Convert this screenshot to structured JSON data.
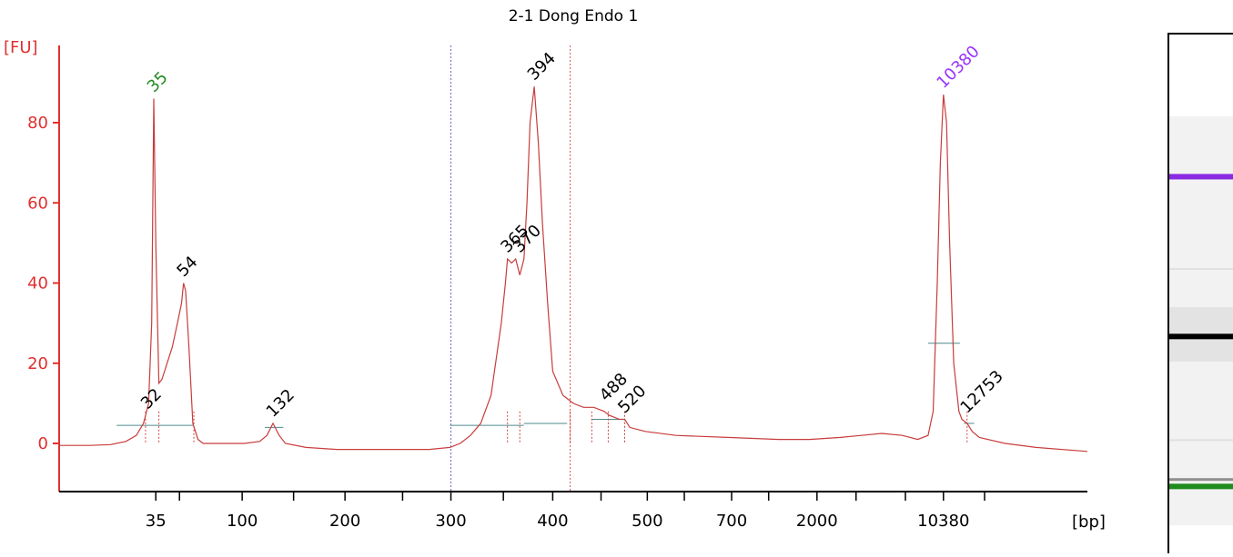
{
  "chart_data": {
    "type": "line",
    "title": "2-1 Dong Endo 1",
    "ylabel": "[FU]",
    "xlabel": "[bp]",
    "ylim": [
      -12,
      98
    ],
    "yticks": [
      0,
      20,
      40,
      60,
      80
    ],
    "xticks": [
      {
        "label": "35",
        "pos": 0.094
      },
      {
        "label": "",
        "pos": 0.117
      },
      {
        "label": "100",
        "pos": 0.178
      },
      {
        "label": "",
        "pos": 0.228
      },
      {
        "label": "200",
        "pos": 0.278
      },
      {
        "label": "",
        "pos": 0.334
      },
      {
        "label": "300",
        "pos": 0.381
      },
      {
        "label": "",
        "pos": 0.432
      },
      {
        "label": "400",
        "pos": 0.48
      },
      {
        "label": "",
        "pos": 0.527
      },
      {
        "label": "500",
        "pos": 0.572
      },
      {
        "label": "",
        "pos": 0.608
      },
      {
        "label": "700",
        "pos": 0.654
      },
      {
        "label": "",
        "pos": 0.69
      },
      {
        "label": "2000",
        "pos": 0.737
      },
      {
        "label": "",
        "pos": 0.775
      },
      {
        "label": "",
        "pos": 0.823
      },
      {
        "label": "10380",
        "pos": 0.86
      },
      {
        "label": "",
        "pos": 0.9
      }
    ],
    "peaks": [
      {
        "label": "35",
        "pos": 0.092,
        "height": 86,
        "color": "#228B22"
      },
      {
        "label": "54",
        "pos": 0.121,
        "height": 40,
        "color": "#000000"
      },
      {
        "label": "32",
        "pos": 0.086,
        "height": 7,
        "color": "#000000"
      },
      {
        "label": "132",
        "pos": 0.208,
        "height": 5,
        "color": "#000000"
      },
      {
        "label": "365",
        "pos": 0.436,
        "height": 46,
        "color": "#000000"
      },
      {
        "label": "370",
        "pos": 0.448,
        "height": 46,
        "color": "#000000"
      },
      {
        "label": "394",
        "pos": 0.462,
        "height": 89,
        "color": "#000000"
      },
      {
        "label": "488",
        "pos": 0.532,
        "height": 9,
        "color": "#000000"
      },
      {
        "label": "520",
        "pos": 0.55,
        "height": 6,
        "color": "#000000"
      },
      {
        "label": "10380",
        "pos": 0.86,
        "height": 87,
        "color": "#9933FF"
      },
      {
        "label": "12753",
        "pos": 0.883,
        "height": 6,
        "color": "#000000"
      }
    ],
    "region_markers": [
      0.381,
      0.497
    ],
    "series": [
      {
        "x": [
          0,
          0.03,
          0.05,
          0.065,
          0.075,
          0.082,
          0.087,
          0.09,
          0.092,
          0.094,
          0.097,
          0.1,
          0.105,
          0.11,
          0.115,
          0.119,
          0.121,
          0.123,
          0.126,
          0.13,
          0.135,
          0.14,
          0.16,
          0.18,
          0.195,
          0.202,
          0.208,
          0.214,
          0.22,
          0.24,
          0.27,
          0.3,
          0.33,
          0.36,
          0.38,
          0.39,
          0.4,
          0.41,
          0.42,
          0.43,
          0.434,
          0.436,
          0.44,
          0.444,
          0.448,
          0.452,
          0.455,
          0.458,
          0.462,
          0.466,
          0.47,
          0.475,
          0.48,
          0.49,
          0.5,
          0.51,
          0.52,
          0.53,
          0.535,
          0.545,
          0.55,
          0.555,
          0.57,
          0.6,
          0.65,
          0.7,
          0.73,
          0.76,
          0.78,
          0.8,
          0.82,
          0.835,
          0.845,
          0.85,
          0.854,
          0.857,
          0.86,
          0.863,
          0.866,
          0.87,
          0.875,
          0.878,
          0.883,
          0.888,
          0.895,
          0.92,
          0.95,
          1.0
        ],
        "y": [
          -0.5,
          -0.5,
          -0.3,
          0.5,
          2,
          5,
          10,
          30,
          86,
          50,
          15,
          16,
          20,
          24,
          30,
          35,
          40,
          38,
          25,
          5,
          1,
          0,
          0,
          0,
          0.5,
          2,
          5,
          2,
          0,
          -1,
          -1.5,
          -1.5,
          -1.5,
          -1.5,
          -1,
          0,
          2,
          5,
          12,
          30,
          40,
          46,
          45,
          46,
          42,
          46,
          60,
          80,
          89,
          75,
          55,
          35,
          18,
          12,
          10,
          9,
          9,
          8,
          7,
          6,
          6,
          4,
          3,
          2,
          1.5,
          1,
          1,
          1.5,
          2,
          2.5,
          2,
          1,
          2,
          8,
          40,
          70,
          87,
          80,
          50,
          20,
          8,
          6,
          5,
          3,
          1.5,
          0,
          -1,
          -2
        ]
      }
    ]
  },
  "gel": {
    "bands": [
      {
        "pos": 0.274,
        "color": "#8A2BE2",
        "label": "upper marker"
      },
      {
        "pos": 0.582,
        "color": "#000000",
        "label": "main band"
      },
      {
        "pos": 0.871,
        "color": "#1E8C1E",
        "label": "lower marker"
      }
    ]
  }
}
